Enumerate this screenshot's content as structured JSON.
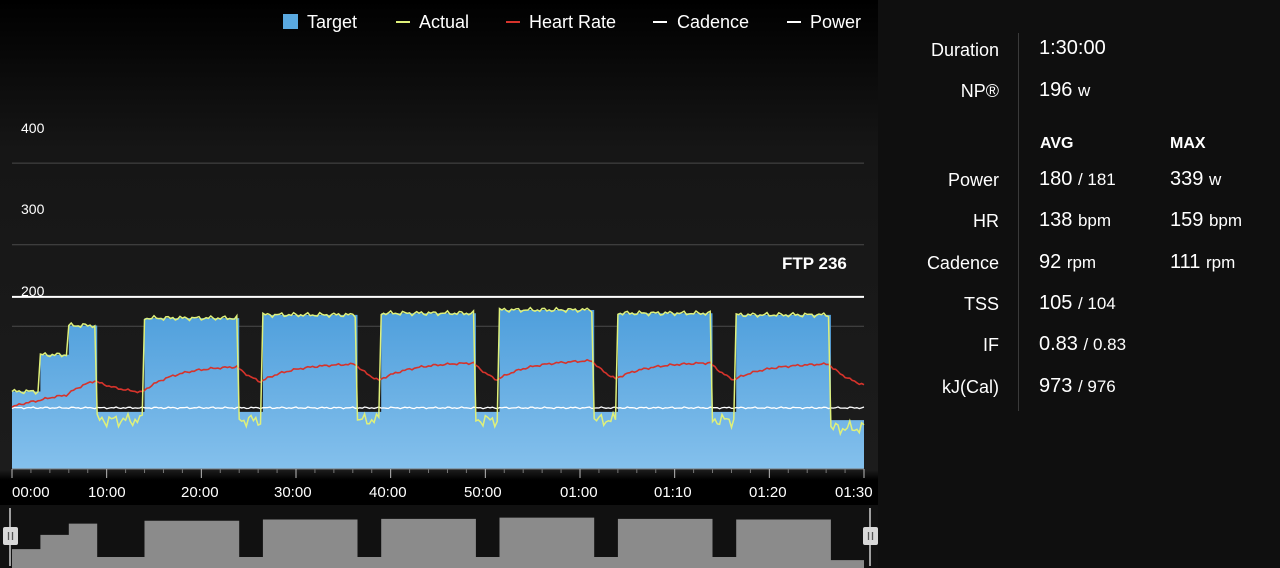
{
  "legend": {
    "target": "Target",
    "actual": "Actual",
    "heart_rate": "Heart Rate",
    "cadence": "Cadence",
    "power": "Power",
    "colors": {
      "target": "#5aa9e0",
      "actual": "#dff07a",
      "heart_rate": "#d6332b",
      "cadence": "#ffffff",
      "power": "#ffffff"
    }
  },
  "ftp_label": "FTP 236",
  "chart_data": {
    "type": "line",
    "ftp": 236,
    "y_ticks": [
      "400",
      "300",
      "200"
    ],
    "x_ticks": [
      "00:00",
      "10:00",
      "20:00",
      "30:00",
      "40:00",
      "50:00",
      "01:00",
      "01:10",
      "01:20",
      "01:30"
    ],
    "xlim_minutes": [
      0,
      90
    ],
    "target_segments_minutes": [
      [
        0,
        3,
        120
      ],
      [
        3,
        6,
        165
      ],
      [
        6,
        9,
        201
      ],
      [
        9,
        14,
        95
      ],
      [
        14,
        24,
        210
      ],
      [
        24,
        26.5,
        95
      ],
      [
        26.5,
        36.5,
        214
      ],
      [
        36.5,
        39,
        95
      ],
      [
        39,
        49,
        216
      ],
      [
        49,
        51.5,
        95
      ],
      [
        51.5,
        61.5,
        220
      ],
      [
        61.5,
        64,
        95
      ],
      [
        64,
        74,
        216
      ],
      [
        74,
        76.5,
        95
      ],
      [
        76.5,
        86.5,
        214
      ],
      [
        86.5,
        90,
        85
      ]
    ]
  },
  "stats": {
    "duration_label": "Duration",
    "duration_value": "1:30:00",
    "np_label": "NP®",
    "np_value": "196",
    "np_unit": "w",
    "avg_header": "AVG",
    "max_header": "MAX",
    "rows": [
      {
        "label": "Power",
        "avg": "180",
        "avg_sub": "/ 181",
        "max": "339",
        "max_unit": "w"
      },
      {
        "label": "HR",
        "avg": "138",
        "avg_sub": "bpm",
        "max": "159",
        "max_unit": "bpm"
      },
      {
        "label": "Cadence",
        "avg": "92",
        "avg_sub": "rpm",
        "max": "111",
        "max_unit": "rpm"
      },
      {
        "label": "TSS",
        "avg": "105",
        "avg_sub": "/ 104",
        "max": "",
        "max_unit": ""
      },
      {
        "label": "IF",
        "avg": "0.83",
        "avg_sub": "/ 0.83",
        "max": "",
        "max_unit": ""
      },
      {
        "label": "kJ(Cal)",
        "avg": "973",
        "avg_sub": "/ 976",
        "max": "",
        "max_unit": ""
      }
    ]
  }
}
